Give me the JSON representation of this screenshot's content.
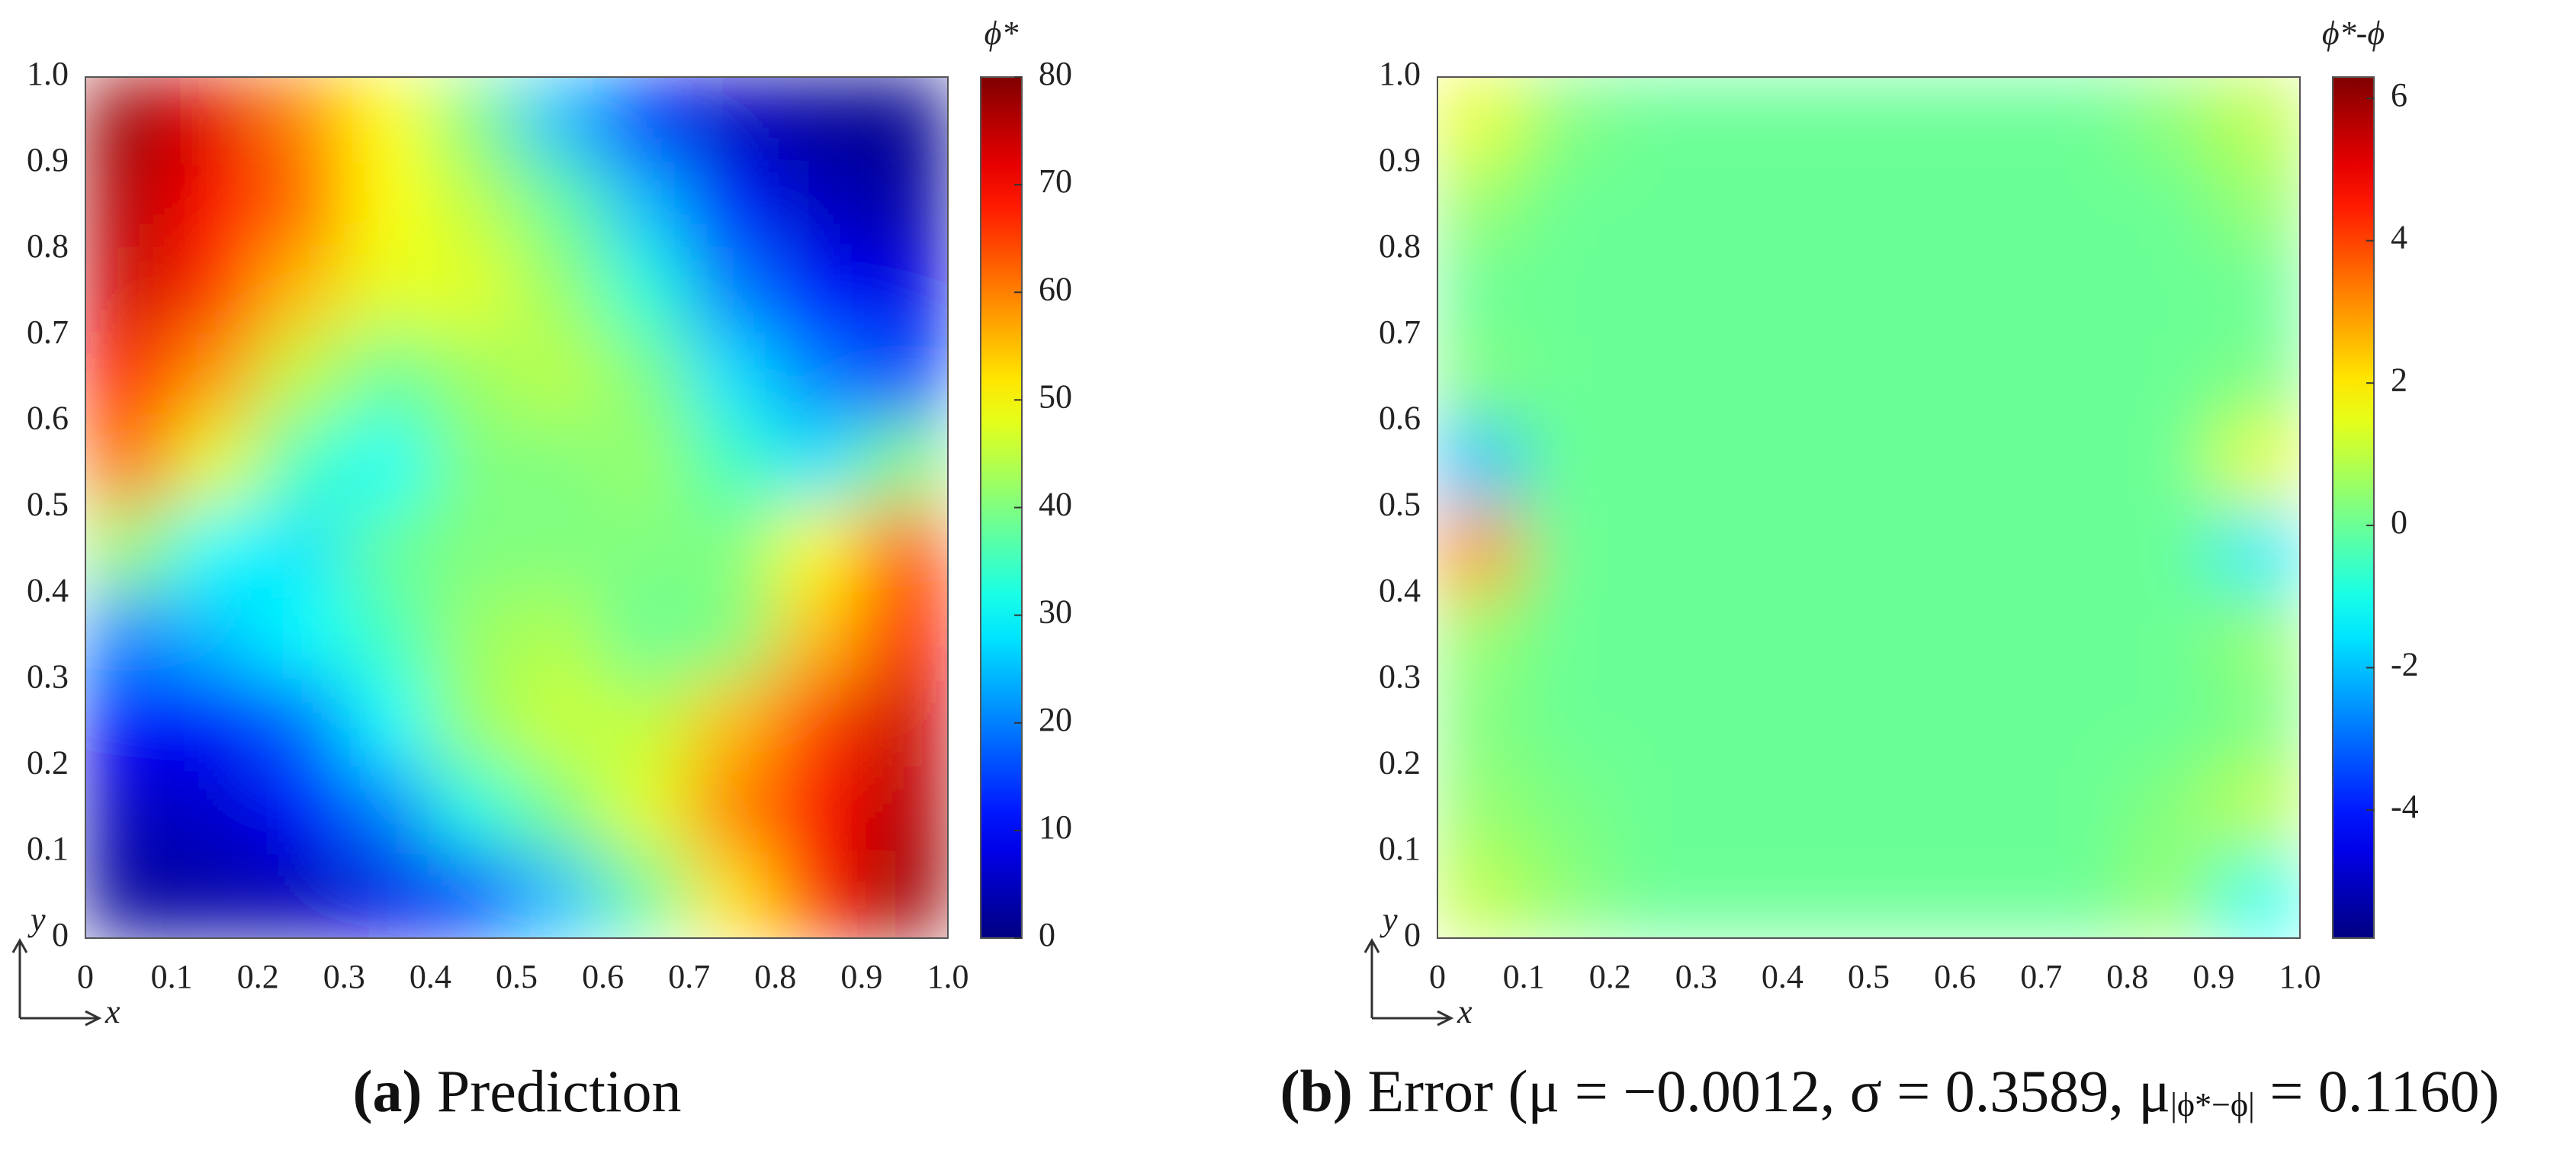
{
  "chart_data": [
    {
      "type": "heatmap",
      "colorbar_title": "ϕ*",
      "caption_label": "(a)",
      "caption": "Prediction",
      "x_label": "x",
      "y_label": "y",
      "colormap": "jet",
      "xlim": [
        0,
        1
      ],
      "ylim": [
        0,
        1
      ],
      "xticks": [
        0,
        0.1,
        0.2,
        0.3,
        0.4,
        0.5,
        0.6,
        0.7,
        0.8,
        0.9,
        {
          "value": 1,
          "label": "1.0"
        }
      ],
      "yticks": [
        0,
        0.1,
        0.2,
        0.3,
        0.4,
        0.5,
        0.6,
        0.7,
        0.8,
        0.9,
        {
          "value": 1,
          "label": "1.0"
        }
      ],
      "clim": [
        0,
        80
      ],
      "cticks": [
        0,
        10,
        20,
        30,
        40,
        50,
        60,
        70,
        80
      ],
      "x": [
        0.05,
        0.15,
        0.25,
        0.35,
        0.45,
        0.55,
        0.65,
        0.75,
        0.85,
        0.95
      ],
      "y": [
        0.95,
        0.85,
        0.75,
        0.65,
        0.55,
        0.45,
        0.35,
        0.25,
        0.15,
        0.05
      ],
      "z": [
        [
          78,
          72,
          60,
          50,
          40,
          25,
          12,
          5,
          2,
          1
        ],
        [
          76,
          70,
          62,
          50,
          45,
          38,
          25,
          12,
          5,
          3
        ],
        [
          74,
          66,
          55,
          48,
          48,
          42,
          33,
          20,
          10,
          8
        ],
        [
          70,
          58,
          45,
          38,
          42,
          45,
          40,
          28,
          20,
          15
        ],
        [
          62,
          48,
          35,
          30,
          40,
          40,
          42,
          35,
          28,
          40
        ],
        [
          42,
          30,
          28,
          38,
          40,
          40,
          40,
          40,
          50,
          64
        ],
        [
          20,
          25,
          30,
          35,
          42,
          44,
          38,
          40,
          55,
          70
        ],
        [
          10,
          10,
          18,
          30,
          42,
          46,
          45,
          55,
          65,
          74
        ],
        [
          5,
          6,
          10,
          20,
          32,
          40,
          48,
          60,
          70,
          76
        ],
        [
          2,
          3,
          4,
          8,
          15,
          25,
          38,
          52,
          68,
          78
        ]
      ]
    },
    {
      "type": "heatmap",
      "colorbar_title": "ϕ*-ϕ",
      "caption_label": "(b)",
      "caption": "Error (μ = −0.0012, σ = 0.3589, μ",
      "caption_sub": "|ϕ*−ϕ|",
      "caption_end": " = 0.1160)",
      "x_label": "x",
      "y_label": "y",
      "colormap": "jet",
      "xlim": [
        0,
        1
      ],
      "ylim": [
        0,
        1
      ],
      "xticks": [
        0,
        0.1,
        0.2,
        0.3,
        0.4,
        0.5,
        0.6,
        0.7,
        0.8,
        0.9,
        {
          "value": 1,
          "label": "1.0"
        }
      ],
      "yticks": [
        0,
        0.1,
        0.2,
        0.3,
        0.4,
        0.5,
        0.6,
        0.7,
        0.8,
        0.9,
        {
          "value": 1,
          "label": "1.0"
        }
      ],
      "clim": [
        -5.8,
        6.3
      ],
      "cticks": [
        -4,
        -2,
        0,
        2,
        4,
        6
      ],
      "x": [
        0.05,
        0.15,
        0.25,
        0.35,
        0.45,
        0.55,
        0.65,
        0.75,
        0.85,
        0.95
      ],
      "y": [
        0.95,
        0.85,
        0.75,
        0.65,
        0.55,
        0.45,
        0.35,
        0.25,
        0.15,
        0.05
      ],
      "z": [
        [
          1.5,
          0.3,
          0,
          0,
          0,
          0,
          0,
          0,
          0.4,
          1
        ],
        [
          0.5,
          0,
          0,
          0,
          0,
          0,
          0,
          0,
          0,
          0.5
        ],
        [
          0,
          0,
          0,
          0,
          0,
          0,
          0,
          0,
          0,
          0
        ],
        [
          0.3,
          0,
          0,
          0,
          0,
          0,
          0,
          0,
          0,
          0.2
        ],
        [
          -2,
          0,
          0,
          0,
          0,
          0,
          0,
          0,
          0,
          1.5
        ],
        [
          3,
          0,
          0,
          0,
          0,
          0,
          0,
          0,
          0,
          -1.5
        ],
        [
          0.5,
          0,
          0,
          0,
          0,
          0,
          0,
          0,
          0,
          0.5
        ],
        [
          0.3,
          0,
          0,
          0,
          0,
          0,
          0,
          0,
          0,
          0.2
        ],
        [
          0.5,
          0.2,
          0,
          0,
          0,
          0,
          0,
          0,
          0.3,
          1
        ],
        [
          1,
          0.4,
          0,
          0,
          0,
          0,
          0,
          0,
          0.5,
          -1
        ]
      ]
    }
  ]
}
